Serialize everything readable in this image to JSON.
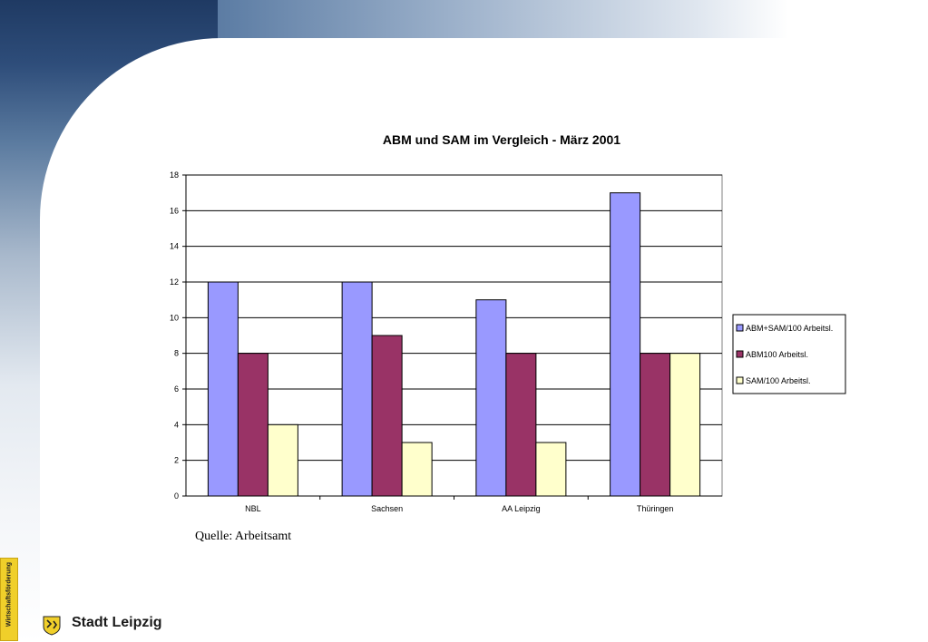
{
  "source_note": "Quelle: Arbeitsamt",
  "vertical_tab": "Wirtschaftsförderung",
  "brand": {
    "name": "Stadt Leipzig"
  },
  "colors": {
    "series1": "#9999ff",
    "series2": "#993366",
    "series3": "#ffffcc",
    "accent_yellow": "#f0cf2a"
  },
  "chart_data": {
    "type": "bar",
    "title": "ABM und SAM im Vergleich - März 2001",
    "xlabel": "",
    "ylabel": "",
    "categories": [
      "NBL",
      "Sachsen",
      "AA Leipzig",
      "Thüringen"
    ],
    "series": [
      {
        "name": "ABM+SAM/100 Arbeitsl.",
        "values": [
          12,
          12,
          11,
          17
        ]
      },
      {
        "name": "ABM100 Arbeitsl.",
        "values": [
          8,
          9,
          8,
          8
        ]
      },
      {
        "name": "SAM/100 Arbeitsl.",
        "values": [
          4,
          3,
          3,
          8
        ]
      }
    ],
    "ylim": [
      0,
      18
    ],
    "yticks": [
      0,
      2,
      4,
      6,
      8,
      10,
      12,
      14,
      16,
      18
    ],
    "grid": true,
    "legend": "right"
  }
}
